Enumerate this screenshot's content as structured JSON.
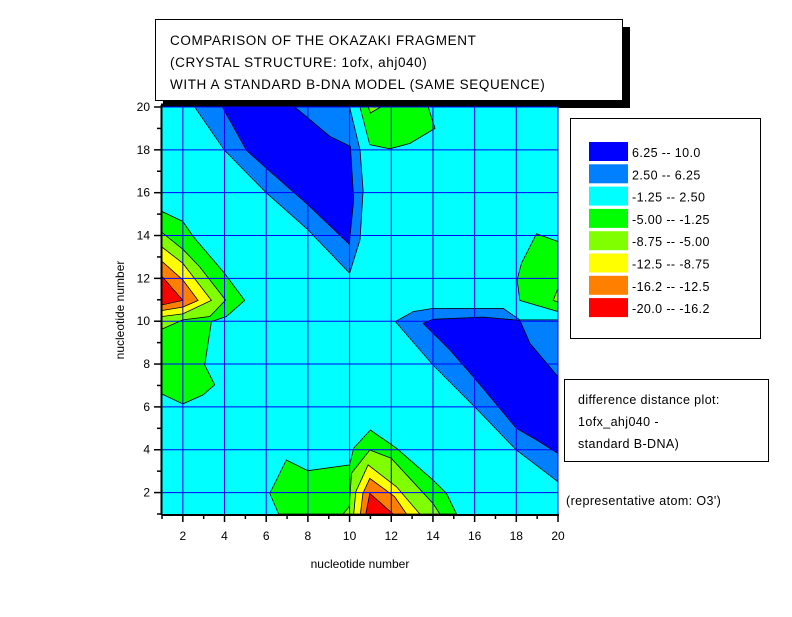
{
  "chart_data": {
    "type": "contour",
    "title_lines": [
      "COMPARISON OF THE OKAZAKI FRAGMENT",
      "(CRYSTAL STRUCTURE: 1ofx, ahj040)",
      "WITH A STANDARD B-DNA MODEL (SAME SEQUENCE)"
    ],
    "xlabel": "nucleotide number",
    "ylabel": "nucleotide number",
    "xlim": [
      1,
      20
    ],
    "ylim": [
      1,
      20
    ],
    "grid": true,
    "grid_color": "#0000ff",
    "x_ticks": [
      "2",
      "4",
      "6",
      "8",
      "10",
      "12",
      "14",
      "16",
      "18",
      "20"
    ],
    "y_ticks": [
      "2",
      "4",
      "6",
      "8",
      "10",
      "12",
      "14",
      "16",
      "18",
      "20"
    ],
    "background_level": 2,
    "levels": [
      {
        "label": "6.25  --  10.0",
        "color": "#0000ff"
      },
      {
        "label": "2.50  --  6.25",
        "color": "#0080ff"
      },
      {
        "label": "-1.25  --  2.50",
        "color": "#00ffff"
      },
      {
        "label": "-5.00  --  -1.25",
        "color": "#00ff00"
      },
      {
        "label": "-8.75  --  -5.00",
        "color": "#80ff00"
      },
      {
        "label": "-12.5  --  -8.75",
        "color": "#ffff00"
      },
      {
        "label": "-16.2  --  -12.5",
        "color": "#ff8000"
      },
      {
        "label": "-20.0  --  -16.2",
        "color": "#ff0000"
      }
    ],
    "regions": [
      {
        "level": 1,
        "points": [
          [
            2.57,
            20
          ],
          [
            4.0,
            17.98
          ],
          [
            6,
            16
          ],
          [
            8,
            14.27
          ],
          [
            10,
            12.24
          ],
          [
            10.5,
            13.8
          ],
          [
            10.65,
            16.1
          ],
          [
            10.5,
            18
          ],
          [
            10,
            20
          ]
        ]
      },
      {
        "level": 0,
        "points": [
          [
            3.9,
            20
          ],
          [
            5.05,
            17.98
          ],
          [
            6.0,
            17.15
          ],
          [
            8.0,
            15.44
          ],
          [
            9.98,
            13.6
          ],
          [
            10.2,
            15.67
          ],
          [
            10.04,
            18.16
          ],
          [
            9.05,
            18.63
          ],
          [
            7.37,
            20
          ]
        ]
      },
      {
        "level": 3,
        "points": [
          [
            10.5,
            20
          ],
          [
            10.97,
            18.24
          ],
          [
            11.93,
            18.05
          ],
          [
            12.9,
            18.3
          ],
          [
            14.1,
            19
          ],
          [
            13.77,
            20
          ]
        ]
      },
      {
        "level": 4,
        "points": [
          [
            10.9,
            20
          ],
          [
            11.0,
            19.72
          ],
          [
            11.5,
            20
          ]
        ]
      },
      {
        "level": 3,
        "points": [
          [
            1,
            15.12
          ],
          [
            2.0,
            14.66
          ],
          [
            2.49,
            13.96
          ],
          [
            4.0,
            12.24
          ],
          [
            4.97,
            10.97
          ],
          [
            4.09,
            10.22
          ],
          [
            3.37,
            9.98
          ],
          [
            3.05,
            7.96
          ],
          [
            3.53,
            7.03
          ],
          [
            2.97,
            6.56
          ],
          [
            2.0,
            6.14
          ],
          [
            1,
            6.6
          ]
        ]
      },
      {
        "level": 4,
        "points": [
          [
            1,
            14.14
          ],
          [
            2.0,
            13.36
          ],
          [
            2.8,
            12.55
          ],
          [
            4.05,
            10.99
          ],
          [
            3.3,
            10.22
          ],
          [
            2.0,
            10.06
          ],
          [
            1,
            9.63
          ]
        ]
      },
      {
        "level": 5,
        "points": [
          [
            1,
            13.46
          ],
          [
            2.0,
            12.71
          ],
          [
            3.37,
            10.97
          ],
          [
            2.0,
            10.34
          ],
          [
            1,
            10.22
          ]
        ]
      },
      {
        "level": 6,
        "points": [
          [
            1,
            12.79
          ],
          [
            2.0,
            11.93
          ],
          [
            2.73,
            10.97
          ],
          [
            2.0,
            10.66
          ],
          [
            1,
            10.5
          ]
        ]
      },
      {
        "level": 7,
        "points": [
          [
            1,
            12.09
          ],
          [
            2.0,
            10.97
          ],
          [
            1,
            10.76
          ]
        ]
      },
      {
        "level": 3,
        "points": [
          [
            18.97,
            14.08
          ],
          [
            20,
            13.72
          ],
          [
            20,
            10.45
          ],
          [
            18.17,
            10.97
          ],
          [
            18.04,
            11.93
          ],
          [
            18.25,
            12.71
          ]
        ]
      },
      {
        "level": 4,
        "points": [
          [
            20,
            11.54
          ],
          [
            19.77,
            10.97
          ],
          [
            20,
            10.89
          ]
        ]
      },
      {
        "level": 1,
        "points": [
          [
            12.2,
            9.98
          ],
          [
            13.05,
            10.45
          ],
          [
            14.0,
            10.6
          ],
          [
            17.37,
            10.6
          ],
          [
            18.17,
            10.06
          ],
          [
            20,
            10.06
          ],
          [
            20,
            2.51
          ],
          [
            18.0,
            3.99
          ],
          [
            16.0,
            6.01
          ],
          [
            14.0,
            7.96
          ]
        ]
      },
      {
        "level": 0,
        "points": [
          [
            13.53,
            9.9
          ],
          [
            14.0,
            10.09
          ],
          [
            16.41,
            10.19
          ],
          [
            18.17,
            10.04
          ],
          [
            18.65,
            8.97
          ],
          [
            20,
            7.41
          ],
          [
            20,
            3.83
          ],
          [
            18.97,
            4.46
          ],
          [
            18.0,
            5.0
          ],
          [
            16.0,
            7.34
          ],
          [
            14.81,
            8.66
          ]
        ]
      },
      {
        "level": 3,
        "points": [
          [
            6.17,
            1.96
          ],
          [
            6.97,
            3.52
          ],
          [
            8.0,
            3.02
          ],
          [
            10.0,
            3.29
          ],
          [
            10.2,
            4.07
          ],
          [
            11.0,
            4.92
          ],
          [
            12.25,
            4.07
          ],
          [
            14.0,
            2.59
          ],
          [
            14.65,
            1.96
          ],
          [
            15.13,
            1
          ],
          [
            6.6,
            1
          ]
        ]
      },
      {
        "level": 4,
        "points": [
          [
            9.69,
            1
          ],
          [
            9.98,
            1.34
          ],
          [
            10.09,
            2.9
          ],
          [
            10.97,
            3.99
          ],
          [
            12.0,
            3.6
          ],
          [
            14.0,
            1.5
          ],
          [
            14.33,
            1
          ]
        ]
      },
      {
        "level": 5,
        "points": [
          [
            10.2,
            1
          ],
          [
            10.3,
            2.04
          ],
          [
            10.89,
            3.29
          ],
          [
            12.25,
            2.27
          ],
          [
            13.37,
            1
          ]
        ]
      },
      {
        "level": 6,
        "points": [
          [
            10.52,
            1
          ],
          [
            10.64,
            1.96
          ],
          [
            10.97,
            2.66
          ],
          [
            12.16,
            1.81
          ],
          [
            12.73,
            1
          ]
        ]
      },
      {
        "level": 7,
        "points": [
          [
            10.78,
            1
          ],
          [
            10.97,
            1.96
          ],
          [
            12.09,
            1
          ]
        ]
      }
    ]
  },
  "info_box": {
    "lines": [
      "difference distance plot:",
      "1ofx_ahj040 -",
      "standard B-DNA)"
    ]
  },
  "footnote": "(representative atom: O3')"
}
